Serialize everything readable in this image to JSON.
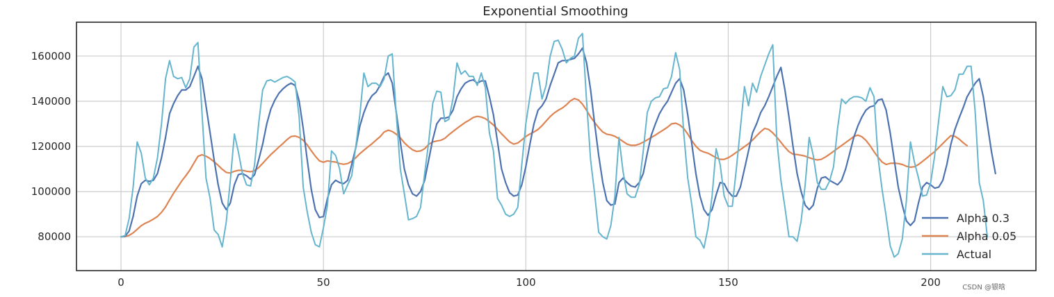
{
  "chart_data": {
    "type": "line",
    "title": "Exponential Smoothing",
    "xlabel": "",
    "ylabel": "",
    "xlim": [
      -11,
      226
    ],
    "ylim": [
      65000,
      175000
    ],
    "xticks": [
      0,
      50,
      100,
      150,
      200
    ],
    "yticks": [
      80000,
      100000,
      120000,
      140000,
      160000
    ],
    "grid": true,
    "legend": "bottom-right",
    "x_start": 0,
    "series": [
      {
        "name": "Alpha 0.3",
        "color": "#4c72b0",
        "values": [
          80000,
          80200,
          82500,
          89000,
          98000,
          103500,
          105000,
          104500,
          105000,
          108000,
          115000,
          124000,
          134500,
          139000,
          142500,
          145000,
          145000,
          146500,
          151000,
          155500,
          150000,
          138000,
          126000,
          114000,
          103000,
          95000,
          92000,
          95000,
          103000,
          107500,
          108000,
          107000,
          105500,
          107500,
          114000,
          121000,
          130000,
          136500,
          140500,
          143500,
          145500,
          147000,
          148000,
          147000,
          140000,
          128000,
          114000,
          101000,
          92000,
          88500,
          89000,
          97000,
          103000,
          105000,
          104000,
          103500,
          105000,
          112000,
          119500,
          129000,
          135000,
          139500,
          142500,
          144000,
          147000,
          151000,
          152500,
          148000,
          135000,
          122000,
          110000,
          103000,
          99000,
          98000,
          100000,
          105000,
          114000,
          123000,
          130000,
          132500,
          132500,
          133000,
          136000,
          142000,
          145500,
          148000,
          149000,
          149500,
          148000,
          149000,
          149000,
          142000,
          134000,
          122000,
          110000,
          104000,
          99500,
          98000,
          98500,
          103000,
          111000,
          121000,
          130000,
          136000,
          138000,
          141000,
          147000,
          152000,
          157000,
          158000,
          158000,
          158500,
          159000,
          161000,
          163500,
          157000,
          145000,
          130000,
          116000,
          104000,
          96000,
          94000,
          94500,
          104000,
          106000,
          104000,
          102500,
          102000,
          104000,
          108000,
          117000,
          125000,
          130000,
          134500,
          137500,
          140000,
          144000,
          148000,
          150000,
          145000,
          134000,
          121000,
          108000,
          98000,
          92000,
          89500,
          92000,
          98500,
          104000,
          103500,
          100000,
          98000,
          98000,
          102000,
          110000,
          118000,
          126000,
          130000,
          135000,
          138000,
          142000,
          146500,
          151000,
          155000,
          145000,
          133000,
          120000,
          108000,
          100000,
          94000,
          92000,
          94000,
          101500,
          106000,
          106500,
          105000,
          104000,
          103000,
          105000,
          110000,
          117000,
          124000,
          129000,
          133000,
          136000,
          137500,
          138000,
          140500,
          141000,
          136000,
          126000,
          114000,
          102000,
          94000,
          87000,
          85000,
          87000,
          95000,
          102000,
          104000,
          103000,
          101500,
          102000,
          105000,
          112000,
          121000,
          127500,
          132500,
          137000,
          142000,
          145000,
          148000,
          150000,
          142000,
          130000,
          118000,
          108000
        ]
      },
      {
        "name": "Alpha 0.05",
        "color": "#dd8452",
        "values": [
          80000,
          80100,
          80600,
          81700,
          83300,
          84900,
          86000,
          86800,
          87800,
          89000,
          90800,
          93200,
          96300,
          99300,
          102000,
          104700,
          107000,
          109500,
          112600,
          115600,
          116300,
          115700,
          114600,
          113200,
          111600,
          109900,
          108500,
          108200,
          109000,
          109400,
          109400,
          109000,
          108800,
          109300,
          110600,
          112500,
          114500,
          116400,
          118000,
          119700,
          121300,
          123000,
          124400,
          124600,
          124000,
          122700,
          120700,
          118100,
          115700,
          113600,
          113000,
          113600,
          113300,
          113100,
          112400,
          112100,
          112400,
          113400,
          115000,
          116800,
          118300,
          119800,
          121200,
          122800,
          124300,
          126400,
          127200,
          126600,
          125400,
          123800,
          121600,
          119900,
          118500,
          117800,
          118000,
          119000,
          120900,
          122000,
          122400,
          122700,
          123600,
          125200,
          126600,
          128000,
          129300,
          130600,
          131600,
          132800,
          133300,
          133000,
          132300,
          131000,
          129500,
          127600,
          125600,
          123800,
          122000,
          121000,
          121500,
          122900,
          124400,
          125500,
          126400,
          127500,
          129200,
          131200,
          133200,
          134800,
          136000,
          137000,
          138400,
          140200,
          141200,
          140600,
          138700,
          136000,
          133000,
          130600,
          128300,
          126400,
          125400,
          125100,
          124500,
          123400,
          122200,
          121000,
          120500,
          120500,
          121000,
          121900,
          122900,
          124000,
          125000,
          126200,
          127300,
          128500,
          130000,
          130300,
          129500,
          128000,
          125500,
          122500,
          120100,
          118300,
          117500,
          117000,
          116000,
          115000,
          114300,
          114300,
          115000,
          116100,
          117400,
          118600,
          119900,
          121200,
          122800,
          124700,
          126500,
          128000,
          127500,
          126000,
          124100,
          121800,
          119600,
          117700,
          116600,
          116400,
          116100,
          115700,
          115000,
          114400,
          114000,
          114300,
          115300,
          116500,
          117800,
          119100,
          120400,
          121700,
          123000,
          124400,
          125000,
          124300,
          122700,
          120400,
          117700,
          115200,
          113100,
          112000,
          112500,
          112600,
          112400,
          112000,
          111200,
          110800,
          111000,
          112000,
          113400,
          114800,
          116300,
          117700,
          119500,
          121300,
          123100,
          124800,
          124500,
          123300,
          121700,
          120300
        ]
      },
      {
        "name": "Actual",
        "color": "#64b5cd",
        "values": [
          80000,
          80500,
          88000,
          102000,
          122000,
          117000,
          106000,
          103000,
          106000,
          115000,
          130000,
          150000,
          158000,
          151000,
          150000,
          150500,
          146000,
          150000,
          164000,
          166000,
          135000,
          106000,
          97000,
          83000,
          81000,
          75500,
          86500,
          105000,
          125500,
          117500,
          108000,
          103000,
          102500,
          112000,
          130000,
          145000,
          149000,
          149500,
          148500,
          149500,
          150500,
          151000,
          150000,
          148500,
          133000,
          102000,
          91000,
          82000,
          76500,
          75500,
          84000,
          94000,
          118000,
          116000,
          110000,
          99000,
          103000,
          107000,
          120000,
          134000,
          152500,
          146500,
          148000,
          148000,
          146500,
          150000,
          160000,
          161000,
          134000,
          110000,
          99000,
          87500,
          88000,
          89000,
          93000,
          108000,
          122000,
          139000,
          144500,
          144000,
          131000,
          132000,
          141000,
          157000,
          152000,
          153500,
          151000,
          151000,
          147000,
          152500,
          146000,
          126000,
          118000,
          97000,
          94000,
          90000,
          89000,
          90000,
          93000,
          112000,
          130000,
          142000,
          152500,
          152500,
          141000,
          147000,
          160000,
          166500,
          167000,
          163000,
          157000,
          159000,
          160000,
          168000,
          170000,
          140000,
          114000,
          99000,
          82000,
          80000,
          79000,
          85000,
          98000,
          124000,
          109000,
          99000,
          97500,
          97500,
          103000,
          118000,
          135000,
          140000,
          141500,
          142000,
          145500,
          146000,
          151000,
          161500,
          154000,
          126000,
          106000,
          94000,
          80000,
          78500,
          75000,
          84000,
          98000,
          119000,
          112000,
          98000,
          93500,
          93500,
          110000,
          128000,
          146500,
          138000,
          148000,
          144000,
          151000,
          156000,
          161000,
          165000,
          123000,
          105000,
          93000,
          80000,
          80000,
          78000,
          87000,
          103000,
          124000,
          116000,
          104000,
          101000,
          101000,
          104500,
          111000,
          128000,
          141000,
          139000,
          141000,
          142000,
          142000,
          141500,
          140000,
          146000,
          142000,
          115000,
          101000,
          89000,
          76000,
          71000,
          72500,
          79000,
          96000,
          122000,
          113000,
          106000,
          98000,
          98500,
          104000,
          116000,
          132000,
          146500,
          142000,
          142500,
          145000,
          152000,
          152000,
          155500,
          155500,
          135000,
          104000,
          96000,
          80000
        ]
      }
    ]
  },
  "watermark": "CSDN @银晗"
}
